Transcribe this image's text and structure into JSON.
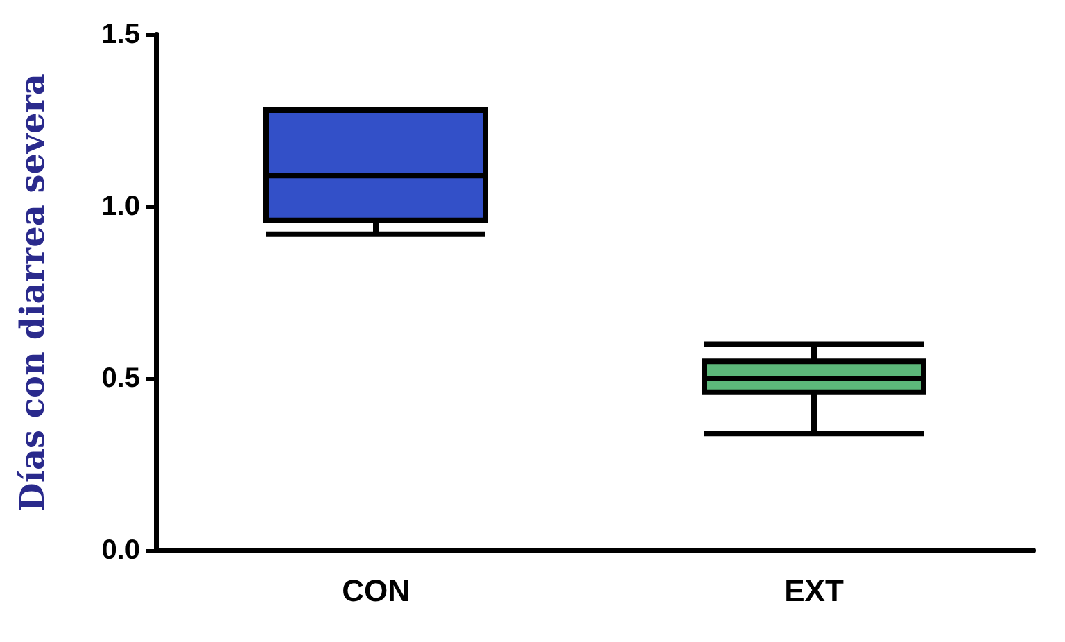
{
  "chart_data": {
    "type": "box",
    "ylabel": "Días con diarrea severa",
    "categories": [
      "CON",
      "EXT"
    ],
    "boxes": [
      {
        "low": 0.92,
        "q1": 0.96,
        "median": 1.09,
        "q3": 1.28,
        "high": 1.28
      },
      {
        "low": 0.34,
        "q1": 0.46,
        "median": 0.5,
        "q3": 0.55,
        "high": 0.6
      }
    ],
    "colors": [
      "#3350c8",
      "#5cb87a"
    ],
    "ylim": [
      0,
      1.5
    ],
    "yticks": [
      {
        "value": 0,
        "label": "0.0"
      },
      {
        "value": 0.5,
        "label": "0.5"
      },
      {
        "value": 1,
        "label": "1.0"
      },
      {
        "value": 1.5,
        "label": "1.5"
      }
    ],
    "grid": false
  }
}
